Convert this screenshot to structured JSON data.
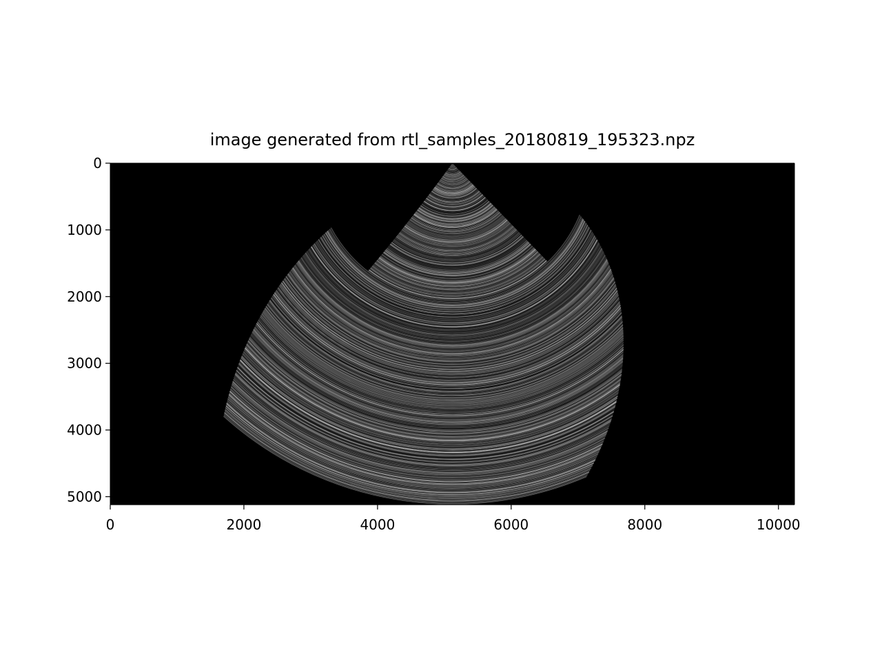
{
  "chart_data": {
    "type": "heatmap",
    "title": "image generated from rtl_samples_20180819_195323.npz",
    "xlabel": "",
    "ylabel": "",
    "colormap": "gray",
    "background_color": "#000000",
    "image_width": 10240,
    "image_height": 5120,
    "xlim": [
      0,
      10240
    ],
    "ylim": [
      5120,
      0
    ],
    "y_inverted": true,
    "grid": false,
    "x_ticks": [
      0,
      2000,
      4000,
      6000,
      8000,
      10000
    ],
    "x_tick_labels": [
      "0",
      "2000",
      "4000",
      "6000",
      "8000",
      "10000"
    ],
    "y_ticks": [
      0,
      1000,
      2000,
      3000,
      4000,
      5000
    ],
    "y_tick_labels": [
      "0",
      "1000",
      "2000",
      "3000",
      "4000",
      "5000"
    ],
    "fan": {
      "apex": [
        5120,
        0
      ],
      "left_edge_angle_deg": 128,
      "right_edge_angle_deg": 52,
      "max_radius": 5120,
      "inner_segment_max_radius": 2050,
      "inner_segment_left_angle_deg": 126,
      "inner_segment_right_angle_deg": 46
    }
  }
}
